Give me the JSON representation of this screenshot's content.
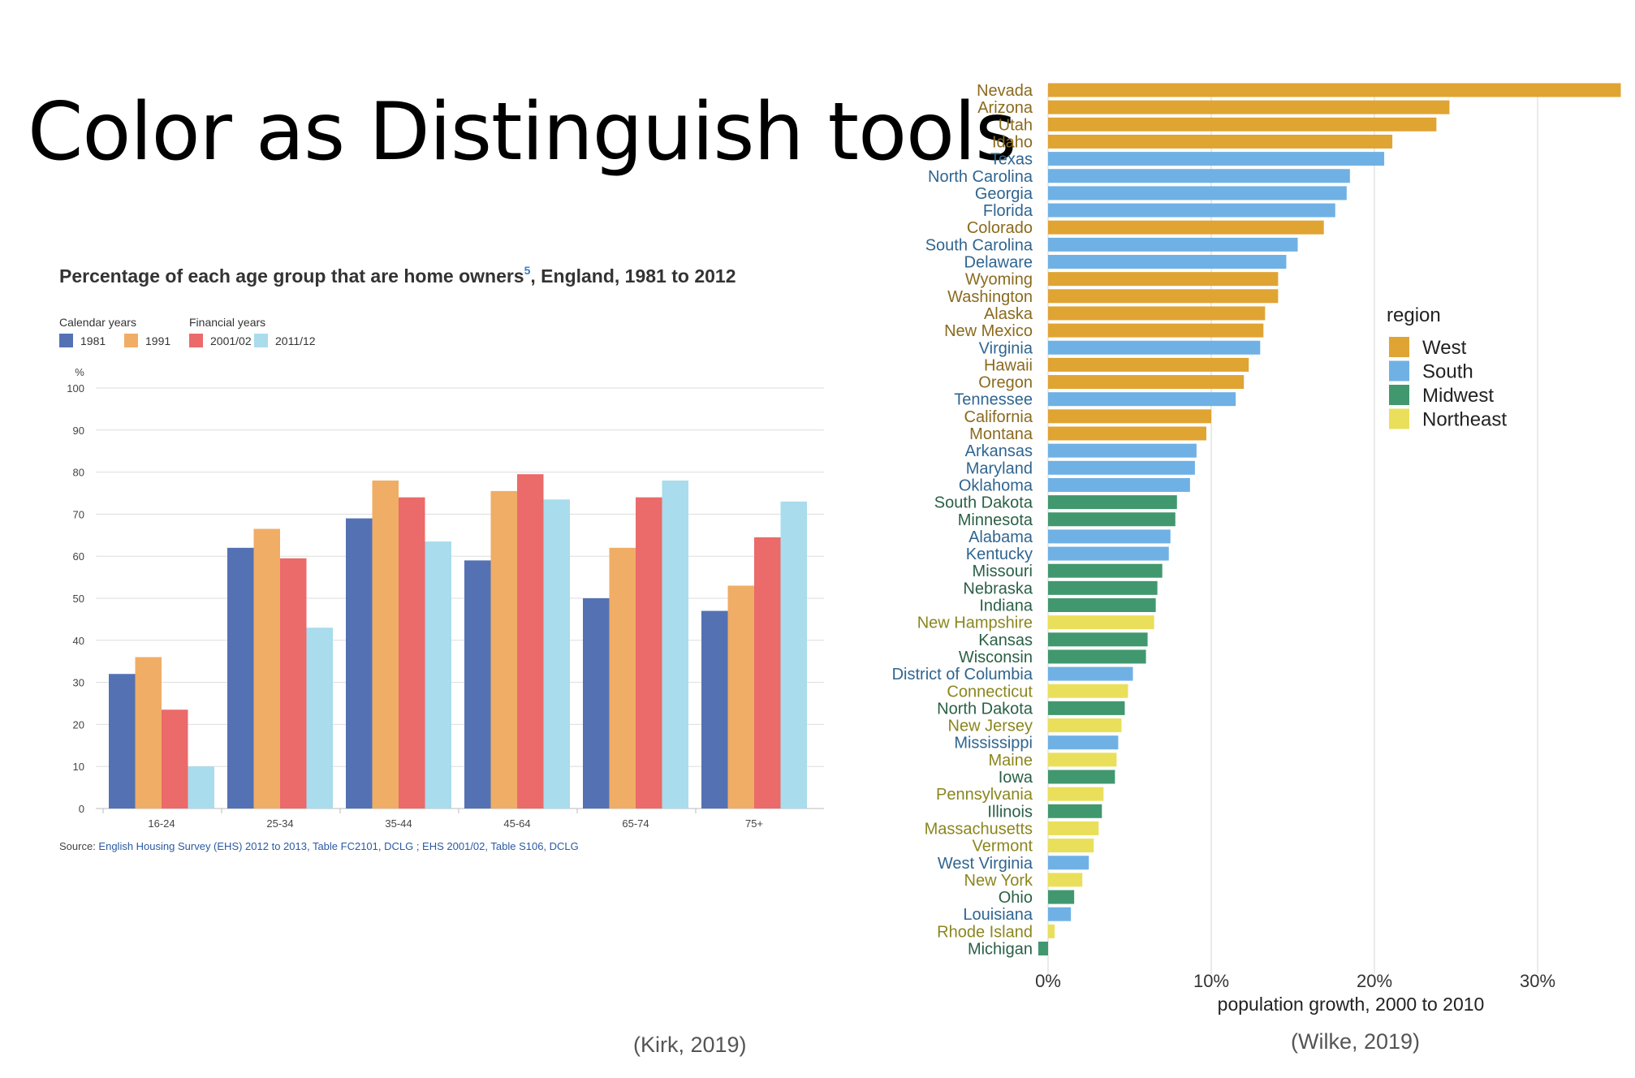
{
  "slide": {
    "title": "Color as Distinguish tools",
    "left_caption": "(Kirk, 2019)",
    "right_caption": "(Wilke, 2019)"
  },
  "chart_data": [
    {
      "type": "bar",
      "title": "Percentage of each age group that are home owners",
      "title_superscript": "5",
      "title_suffix": ", England, 1981 to 2012",
      "legend_groups": [
        {
          "label": "Calendar years",
          "series": [
            "1981",
            "1991"
          ]
        },
        {
          "label": "Financial years",
          "series": [
            "2001/02",
            "2011/12"
          ]
        }
      ],
      "ylabel": "%",
      "ylim": [
        0,
        100
      ],
      "yticks": [
        0,
        10,
        20,
        30,
        40,
        50,
        60,
        70,
        80,
        90,
        100
      ],
      "grid": true,
      "categories": [
        "16-24",
        "25-34",
        "35-44",
        "45-64",
        "65-74",
        "75+"
      ],
      "series": [
        {
          "name": "1981",
          "color": "#5472b3",
          "values": [
            32,
            62,
            69,
            59,
            50,
            47
          ]
        },
        {
          "name": "1991",
          "color": "#f0ad66",
          "values": [
            36,
            66.5,
            78,
            75.5,
            62,
            53
          ]
        },
        {
          "name": "2001/02",
          "color": "#eb6a6a",
          "values": [
            23.5,
            59.5,
            74,
            79.5,
            74,
            64.5
          ]
        },
        {
          "name": "2011/12",
          "color": "#a9dcec",
          "values": [
            10,
            43,
            63.5,
            73.5,
            78,
            73
          ]
        }
      ],
      "source_prefix": "Source: ",
      "source_text": "English Housing Survey (EHS) 2012 to 2013, Table FC2101, DCLG ; EHS 2001/02, Table S106, DCLG",
      "link_color": "#2b5aa3"
    },
    {
      "type": "bar",
      "orientation": "horizontal",
      "xlabel": "population growth, 2000 to 2010",
      "xticks": [
        "0%",
        "10%",
        "20%",
        "30%"
      ],
      "xlim": [
        0,
        35
      ],
      "grid": true,
      "legend_title": "region",
      "legend_placement": "right",
      "regions": [
        {
          "name": "West",
          "color": "#e0a433",
          "label_color": "#8a6a1e"
        },
        {
          "name": "South",
          "color": "#6fb1e4",
          "label_color": "#2f6590"
        },
        {
          "name": "Midwest",
          "color": "#41986e",
          "label_color": "#2a6046"
        },
        {
          "name": "Northeast",
          "color": "#eadf5a",
          "label_color": "#8a861e"
        }
      ],
      "states": [
        {
          "name": "Nevada",
          "value": 35.1,
          "region": "West"
        },
        {
          "name": "Arizona",
          "value": 24.6,
          "region": "West"
        },
        {
          "name": "Utah",
          "value": 23.8,
          "region": "West"
        },
        {
          "name": "Idaho",
          "value": 21.1,
          "region": "West"
        },
        {
          "name": "Texas",
          "value": 20.6,
          "region": "South"
        },
        {
          "name": "North Carolina",
          "value": 18.5,
          "region": "South"
        },
        {
          "name": "Georgia",
          "value": 18.3,
          "region": "South"
        },
        {
          "name": "Florida",
          "value": 17.6,
          "region": "South"
        },
        {
          "name": "Colorado",
          "value": 16.9,
          "region": "West"
        },
        {
          "name": "South Carolina",
          "value": 15.3,
          "region": "South"
        },
        {
          "name": "Delaware",
          "value": 14.6,
          "region": "South"
        },
        {
          "name": "Wyoming",
          "value": 14.1,
          "region": "West"
        },
        {
          "name": "Washington",
          "value": 14.1,
          "region": "West"
        },
        {
          "name": "Alaska",
          "value": 13.3,
          "region": "West"
        },
        {
          "name": "New Mexico",
          "value": 13.2,
          "region": "West"
        },
        {
          "name": "Virginia",
          "value": 13.0,
          "region": "South"
        },
        {
          "name": "Hawaii",
          "value": 12.3,
          "region": "West"
        },
        {
          "name": "Oregon",
          "value": 12.0,
          "region": "West"
        },
        {
          "name": "Tennessee",
          "value": 11.5,
          "region": "South"
        },
        {
          "name": "California",
          "value": 10.0,
          "region": "West"
        },
        {
          "name": "Montana",
          "value": 9.7,
          "region": "West"
        },
        {
          "name": "Arkansas",
          "value": 9.1,
          "region": "South"
        },
        {
          "name": "Maryland",
          "value": 9.0,
          "region": "South"
        },
        {
          "name": "Oklahoma",
          "value": 8.7,
          "region": "South"
        },
        {
          "name": "South Dakota",
          "value": 7.9,
          "region": "Midwest"
        },
        {
          "name": "Minnesota",
          "value": 7.8,
          "region": "Midwest"
        },
        {
          "name": "Alabama",
          "value": 7.5,
          "region": "South"
        },
        {
          "name": "Kentucky",
          "value": 7.4,
          "region": "South"
        },
        {
          "name": "Missouri",
          "value": 7.0,
          "region": "Midwest"
        },
        {
          "name": "Nebraska",
          "value": 6.7,
          "region": "Midwest"
        },
        {
          "name": "Indiana",
          "value": 6.6,
          "region": "Midwest"
        },
        {
          "name": "New Hampshire",
          "value": 6.5,
          "region": "Northeast"
        },
        {
          "name": "Kansas",
          "value": 6.1,
          "region": "Midwest"
        },
        {
          "name": "Wisconsin",
          "value": 6.0,
          "region": "Midwest"
        },
        {
          "name": "District of Columbia",
          "value": 5.2,
          "region": "South"
        },
        {
          "name": "Connecticut",
          "value": 4.9,
          "region": "Northeast"
        },
        {
          "name": "North Dakota",
          "value": 4.7,
          "region": "Midwest"
        },
        {
          "name": "New Jersey",
          "value": 4.5,
          "region": "Northeast"
        },
        {
          "name": "Mississippi",
          "value": 4.3,
          "region": "South"
        },
        {
          "name": "Maine",
          "value": 4.2,
          "region": "Northeast"
        },
        {
          "name": "Iowa",
          "value": 4.1,
          "region": "Midwest"
        },
        {
          "name": "Pennsylvania",
          "value": 3.4,
          "region": "Northeast"
        },
        {
          "name": "Illinois",
          "value": 3.3,
          "region": "Midwest"
        },
        {
          "name": "Massachusetts",
          "value": 3.1,
          "region": "Northeast"
        },
        {
          "name": "Vermont",
          "value": 2.8,
          "region": "Northeast"
        },
        {
          "name": "West Virginia",
          "value": 2.5,
          "region": "South"
        },
        {
          "name": "New York",
          "value": 2.1,
          "region": "Northeast"
        },
        {
          "name": "Ohio",
          "value": 1.6,
          "region": "Midwest"
        },
        {
          "name": "Louisiana",
          "value": 1.4,
          "region": "South"
        },
        {
          "name": "Rhode Island",
          "value": 0.4,
          "region": "Northeast"
        },
        {
          "name": "Michigan",
          "value": -0.6,
          "region": "Midwest"
        }
      ]
    }
  ]
}
